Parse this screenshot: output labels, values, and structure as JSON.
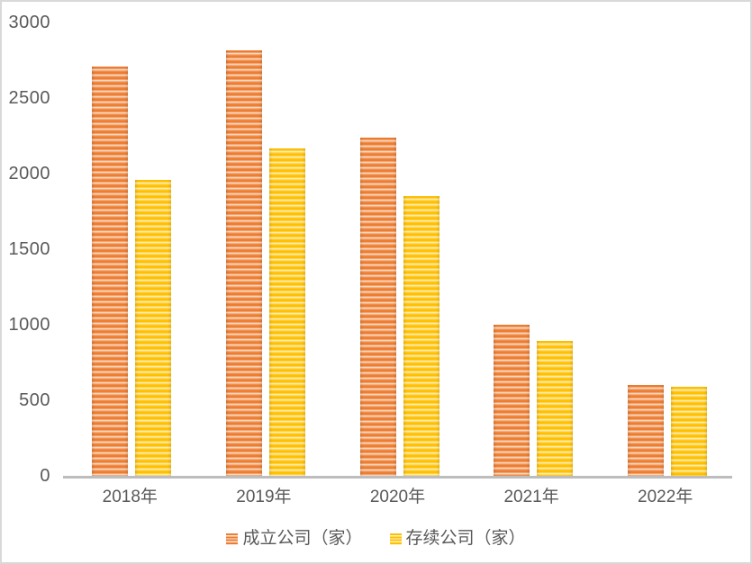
{
  "chart_data": {
    "type": "bar",
    "title": "",
    "categories": [
      "2018年",
      "2019年",
      "2020年",
      "2021年",
      "2022年"
    ],
    "series": [
      {
        "name": "成立公司（家）",
        "values": [
          2710,
          2815,
          2240,
          1000,
          600
        ],
        "color": "#ED7D31",
        "color_light": "#FCE9DB",
        "color_mid": "#F4AC7C",
        "pattern": "horizontal-stripes"
      },
      {
        "name": "存续公司（家）",
        "values": [
          1960,
          2165,
          1850,
          895,
          590
        ],
        "color": "#FFC000",
        "color_light": "#FFF3CC",
        "color_mid": "#FFD966",
        "pattern": "horizontal-stripes"
      }
    ],
    "xlabel": "",
    "ylabel": "",
    "ylim": [
      0,
      3000
    ],
    "yticks": [
      0,
      500,
      1000,
      1500,
      2000,
      2500,
      3000
    ],
    "grid": false,
    "legend_position": "bottom"
  },
  "styles": {
    "text_color": "#595959",
    "axis_line_color": "#BDBDBD",
    "border_color": "#D9D9D9",
    "background": "#FFFFFF"
  }
}
